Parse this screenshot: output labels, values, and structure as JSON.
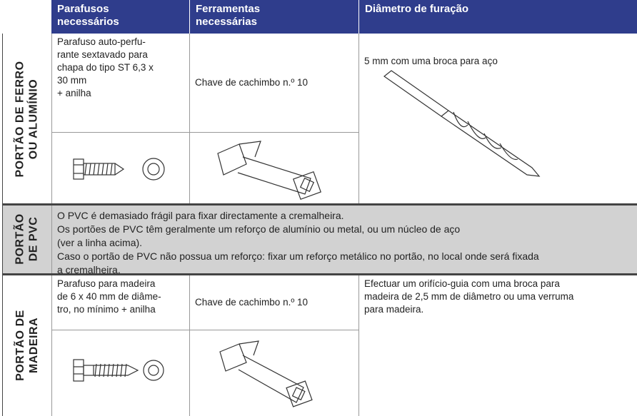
{
  "header": {
    "columns": [
      [
        "Parafusos",
        "necessários"
      ],
      [
        "Ferramentas",
        "necessárias"
      ],
      [
        "Diâmetro de furação"
      ]
    ]
  },
  "rows": [
    {
      "label": [
        "PORTÃO DE FERRO",
        "OU ALUMÍNIO"
      ],
      "screws": [
        "Parafuso auto-perfu-",
        "rante sextavado para",
        "chapa do tipo ST 6,3 x",
        "30 mm",
        "+ anilha",
        ""
      ],
      "tool": "Chave de cachimbo n.º 10",
      "diameter": [
        "5 mm com uma broca para aço"
      ]
    },
    {
      "label": [
        "PORTÃO",
        "DE PVC"
      ],
      "text": [
        "O PVC é demasiado frágil para fixar directamente a cremalheira.",
        "Os portões de PVC têm geralmente um reforço de alumínio ou metal, ou um núcleo de aço",
        "(ver a linha acima).",
        "Caso o portão de PVC não possua um reforço: fixar um reforço metálico no portão, no local onde será fixada",
        "a cremalheira."
      ]
    },
    {
      "label": [
        "PORTÃO DE",
        "MADEIRA"
      ],
      "screws": [
        "Parafuso para madeira",
        "de 6 x 40 mm de diâme-",
        "tro, no mínimo + anilha"
      ],
      "tool": "Chave de cachimbo n.º 10",
      "diameter": [
        "Efectuar um orifício-guia com uma broca para",
        "madeira de 2,5 mm de diâmetro ou uma verruma",
        "para madeira."
      ]
    }
  ]
}
